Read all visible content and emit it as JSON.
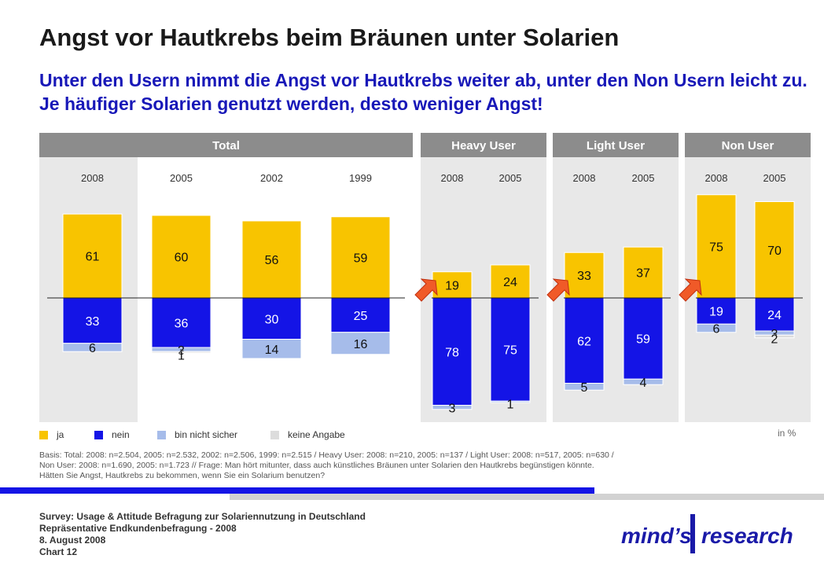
{
  "title": "Angst vor Hautkrebs beim Bräunen unter Solarien",
  "subtitle": "Unter den Usern nimmt die Angst vor Hautkrebs weiter ab, unter den Non Usern leicht zu. Je häufiger Solarien genutzt werden, desto weniger Angst!",
  "unit_label": "in %",
  "colors": {
    "ja": "#f8c400",
    "nein": "#1414e6",
    "bin_nicht_sicher": "#a6bcea",
    "keine_angabe": "#dcdcdc",
    "panel_header": "#8c8c8c",
    "panel_bg": "#e8e8e8",
    "highlight": "#f05a28"
  },
  "legend": [
    {
      "label": "ja",
      "color": "#f8c400"
    },
    {
      "label": "nein",
      "color": "#1414e6"
    },
    {
      "label": "bin nicht sicher",
      "color": "#a6bcea"
    },
    {
      "label": "keine Angabe",
      "color": "#dcdcdc"
    }
  ],
  "chart_data": {
    "type": "bar",
    "stacking": "diverging",
    "series_names": [
      "ja",
      "nein",
      "bin nicht sicher",
      "keine Angabe"
    ],
    "groups": [
      {
        "name": "Total",
        "bars": [
          {
            "year": "2008",
            "ja": 61,
            "nein": 33,
            "bin_nicht_sicher": 6,
            "keine_angabe": null
          },
          {
            "year": "2005",
            "ja": 60,
            "nein": 36,
            "bin_nicht_sicher": 3,
            "keine_angabe": 1
          },
          {
            "year": "2002",
            "ja": 56,
            "nein": 30,
            "bin_nicht_sicher": 14,
            "keine_angabe": null
          },
          {
            "year": "1999",
            "ja": 59,
            "nein": 25,
            "bin_nicht_sicher": 16,
            "keine_angabe": null
          }
        ]
      },
      {
        "name": "Heavy User",
        "bars": [
          {
            "year": "2008",
            "ja": 19,
            "nein": 78,
            "bin_nicht_sicher": 3,
            "keine_angabe": null,
            "highlight": true
          },
          {
            "year": "2005",
            "ja": 24,
            "nein": 75,
            "bin_nicht_sicher": 1,
            "keine_angabe": null
          }
        ]
      },
      {
        "name": "Light User",
        "bars": [
          {
            "year": "2008",
            "ja": 33,
            "nein": 62,
            "bin_nicht_sicher": 5,
            "keine_angabe": null,
            "highlight": true
          },
          {
            "year": "2005",
            "ja": 37,
            "nein": 59,
            "bin_nicht_sicher": 4,
            "keine_angabe": null
          }
        ]
      },
      {
        "name": "Non User",
        "bars": [
          {
            "year": "2008",
            "ja": 75,
            "nein": 19,
            "bin_nicht_sicher": 6,
            "keine_angabe": null,
            "highlight": true
          },
          {
            "year": "2005",
            "ja": 70,
            "nein": 24,
            "bin_nicht_sicher": 3,
            "keine_angabe": 2
          }
        ]
      }
    ]
  },
  "basis_lines": [
    "Basis: Total: 2008: n=2.504, 2005: n=2.532, 2002: n=2.506, 1999: n=2.515 / Heavy User: 2008: n=210, 2005: n=137 / Light User: 2008: n=517, 2005: n=630 /",
    "Non User: 2008: n=1.690, 2005: n=1.723 // Frage: Man hört mitunter, dass auch künstliches Bräunen unter Solarien den Hautkrebs begünstigen könnte.",
    "Hätten Sie Angst, Hautkrebs zu bekommen, wenn Sie ein Solarium benutzen?"
  ],
  "footer_lines": [
    "Survey: Usage & Attitude Befragung zur Solariennutzung in Deutschland",
    "Repräsentative Endkundenbefragung - 2008",
    "8. August 2008",
    "Chart 12"
  ],
  "logo": {
    "part1": "mind’s",
    "part2": "research"
  }
}
